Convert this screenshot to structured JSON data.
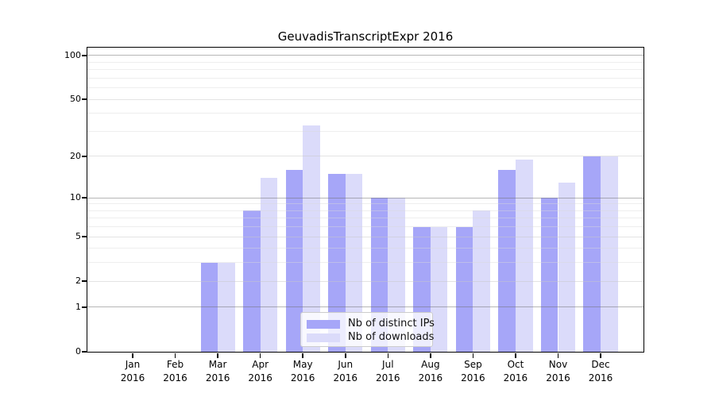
{
  "chart_data": {
    "type": "bar",
    "title": "GeuvadisTranscriptExpr 2016",
    "categories": [
      "Jan",
      "Feb",
      "Mar",
      "Apr",
      "May",
      "Jun",
      "Jul",
      "Aug",
      "Sep",
      "Oct",
      "Nov",
      "Dec"
    ],
    "x_tick_year": "2016",
    "series": [
      {
        "name": "Nb of distinct IPs",
        "color": "#a6a6f8",
        "values": [
          0,
          0,
          3,
          8,
          16,
          15,
          10,
          6,
          6,
          16,
          10,
          20
        ]
      },
      {
        "name": "Nb of downloads",
        "color": "#dbdbfa",
        "values": [
          0,
          0,
          3,
          14,
          33,
          15,
          10,
          6,
          8,
          19,
          13,
          20
        ]
      }
    ],
    "yscale": "log10(1+v)",
    "ylim": [
      0,
      113
    ],
    "yticks": [
      0,
      1,
      2,
      5,
      10,
      20,
      50,
      100
    ],
    "major_gridlines": [
      1,
      10,
      100
    ],
    "minor_gridlines": [
      3,
      4,
      6,
      7,
      8,
      9,
      30,
      40,
      60,
      70,
      80,
      90
    ],
    "grid": true,
    "legend_position": "lower-center",
    "xlabel": "",
    "ylabel": "",
    "colors": {
      "background": "#ffffff",
      "axis": "#000000",
      "text": "#000000",
      "major_grid": "rgba(110,110,110,0.50)",
      "mid_grid": "rgba(200,200,200,0.50)",
      "minor_grid": "rgba(218,218,218,0.45)"
    }
  }
}
